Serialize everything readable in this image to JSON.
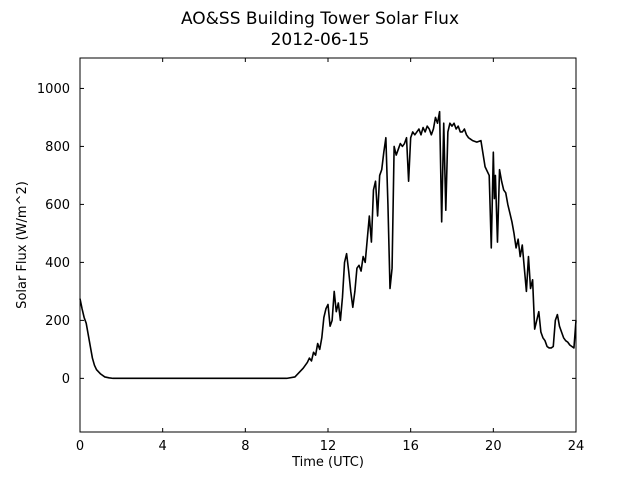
{
  "chart_data": {
    "type": "line",
    "title": "AO&SS Building Tower Solar Flux",
    "subtitle": "2012-06-15",
    "xlabel": "Time (UTC)",
    "ylabel": "Solar Flux (W/m^2)",
    "xlim": [
      0,
      24
    ],
    "ylim": [
      -185,
      1105
    ],
    "xticks": [
      0,
      4,
      8,
      12,
      16,
      20,
      24
    ],
    "yticks": [
      0,
      200,
      400,
      600,
      800,
      1000
    ],
    "grid": false,
    "legend": "none",
    "line_color": "#000000",
    "series": [
      {
        "x": [
          0.0,
          0.1,
          0.2,
          0.3,
          0.4,
          0.5,
          0.6,
          0.7,
          0.8,
          1.0,
          1.2,
          1.4,
          1.6,
          1.8,
          2.0,
          2.5,
          4.0,
          6.0,
          8.0,
          10.0,
          10.4,
          10.6,
          10.8,
          11.0,
          11.1,
          11.2,
          11.3,
          11.4,
          11.5,
          11.6,
          11.7,
          11.8,
          11.9,
          12.0,
          12.1,
          12.2,
          12.3,
          12.4,
          12.5,
          12.6,
          12.7,
          12.8,
          12.9,
          13.0,
          13.1,
          13.2,
          13.3,
          13.4,
          13.5,
          13.6,
          13.7,
          13.8,
          13.9,
          14.0,
          14.1,
          14.2,
          14.3,
          14.4,
          14.5,
          14.6,
          14.7,
          14.8,
          14.9,
          15.0,
          15.1,
          15.2,
          15.3,
          15.4,
          15.5,
          15.6,
          15.7,
          15.8,
          15.9,
          16.0,
          16.1,
          16.2,
          16.3,
          16.4,
          16.5,
          16.6,
          16.7,
          16.8,
          16.9,
          17.0,
          17.1,
          17.2,
          17.3,
          17.4,
          17.5,
          17.6,
          17.7,
          17.8,
          17.9,
          18.0,
          18.1,
          18.2,
          18.3,
          18.4,
          18.5,
          18.6,
          18.7,
          18.8,
          18.9,
          19.0,
          19.2,
          19.4,
          19.6,
          19.8,
          19.9,
          20.0,
          20.05,
          20.1,
          20.2,
          20.3,
          20.4,
          20.5,
          20.6,
          20.7,
          20.8,
          20.9,
          21.0,
          21.1,
          21.2,
          21.3,
          21.4,
          21.5,
          21.6,
          21.7,
          21.8,
          21.9,
          22.0,
          22.1,
          22.2,
          22.3,
          22.4,
          22.5,
          22.6,
          22.7,
          22.8,
          22.9,
          23.0,
          23.1,
          23.2,
          23.3,
          23.4,
          23.5,
          23.6,
          23.7,
          23.8,
          23.9,
          24.0
        ],
        "values": [
          275,
          240,
          210,
          190,
          150,
          110,
          70,
          45,
          30,
          15,
          5,
          2,
          0,
          0,
          0,
          0,
          0,
          0,
          0,
          0,
          5,
          20,
          35,
          55,
          70,
          60,
          90,
          80,
          120,
          100,
          140,
          210,
          240,
          255,
          180,
          200,
          300,
          230,
          260,
          200,
          280,
          400,
          430,
          370,
          300,
          245,
          300,
          380,
          390,
          370,
          420,
          400,
          480,
          560,
          470,
          650,
          680,
          560,
          700,
          720,
          780,
          830,
          600,
          310,
          380,
          800,
          770,
          790,
          810,
          800,
          810,
          830,
          680,
          830,
          850,
          840,
          850,
          860,
          840,
          865,
          850,
          870,
          860,
          840,
          860,
          900,
          880,
          920,
          540,
          880,
          580,
          850,
          880,
          870,
          880,
          860,
          870,
          850,
          850,
          860,
          840,
          830,
          825,
          820,
          815,
          820,
          730,
          700,
          450,
          780,
          620,
          700,
          470,
          720,
          680,
          650,
          640,
          600,
          570,
          540,
          500,
          450,
          480,
          420,
          460,
          380,
          300,
          420,
          310,
          340,
          170,
          200,
          230,
          160,
          140,
          130,
          110,
          105,
          105,
          110,
          200,
          220,
          180,
          160,
          140,
          130,
          125,
          115,
          110,
          105,
          200
        ]
      }
    ]
  }
}
